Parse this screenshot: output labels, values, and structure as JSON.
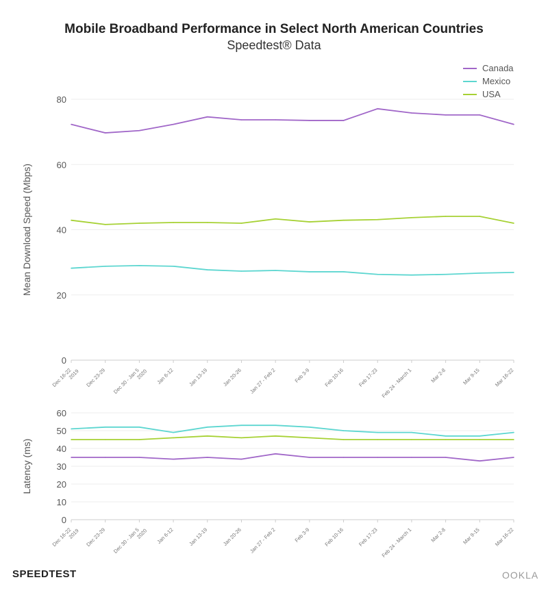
{
  "title": "Mobile Broadband Performance in Select North American Countries",
  "subtitle": "Speedtest® Data",
  "logo": "SPEEDTEST",
  "brand": "OOKLA",
  "colors": {
    "Canada": "#a066c8",
    "Mexico": "#5cd6d0",
    "USA": "#a6d133"
  },
  "chart_data": [
    {
      "type": "line",
      "ylabel": "Mean Download Speed (Mbps)",
      "ylim": [
        0,
        80
      ],
      "yticks": [
        0,
        20,
        40,
        60,
        80
      ],
      "grid": true,
      "legend": "top-right",
      "categories": [
        "Dec 16-22|2019",
        "Dec 23-29",
        "Dec 30 - Jan 5|2020",
        "Jan 6-12",
        "Jan 13-19",
        "Jan 20-26",
        "Jan 27 - Feb 2",
        "Feb 3-9",
        "Feb 10-16",
        "Feb 17-23",
        "Feb 24 - March 1",
        "Mar 2-8",
        "Mar 9-15",
        "Mar 16-22"
      ],
      "series": [
        {
          "name": "Canada",
          "values": [
            72.3,
            69.7,
            70.4,
            72.3,
            74.6,
            73.7,
            73.7,
            73.5,
            73.5,
            77.1,
            75.8,
            75.2,
            75.2,
            72.3
          ]
        },
        {
          "name": "Mexico",
          "values": [
            28.2,
            28.8,
            29.0,
            28.8,
            27.7,
            27.3,
            27.5,
            27.1,
            27.1,
            26.3,
            26.1,
            26.3,
            26.7,
            26.9
          ]
        },
        {
          "name": "USA",
          "values": [
            42.9,
            41.6,
            42.0,
            42.2,
            42.2,
            42.0,
            43.3,
            42.4,
            42.9,
            43.1,
            43.7,
            44.1,
            44.1,
            42.0
          ]
        }
      ]
    },
    {
      "type": "line",
      "ylabel": "Latency (ms)",
      "ylim": [
        0,
        60
      ],
      "yticks": [
        0,
        10,
        20,
        30,
        40,
        50,
        60
      ],
      "grid": true,
      "categories": [
        "Dec 16-22|2019",
        "Dec 23-29",
        "Dec 30 - Jan 5|2020",
        "Jan 6-12",
        "Jan 13-19",
        "Jan 20-26",
        "Jan 27 - Feb 2",
        "Feb 3-9",
        "Feb 10-16",
        "Feb 17-23",
        "Feb 24 - March 1",
        "Mar 2-8",
        "Mar 9-15",
        "Mar 16-22"
      ],
      "series": [
        {
          "name": "Canada",
          "values": [
            35,
            35,
            35,
            34,
            35,
            34,
            37,
            35,
            35,
            35,
            35,
            35,
            33,
            35
          ]
        },
        {
          "name": "Mexico",
          "values": [
            51,
            52,
            52,
            49,
            52,
            53,
            53,
            52,
            50,
            49,
            49,
            47,
            47,
            49
          ]
        },
        {
          "name": "USA",
          "values": [
            45,
            45,
            45,
            46,
            47,
            46,
            47,
            46,
            45,
            45,
            45,
            45,
            45,
            45
          ]
        }
      ]
    }
  ]
}
